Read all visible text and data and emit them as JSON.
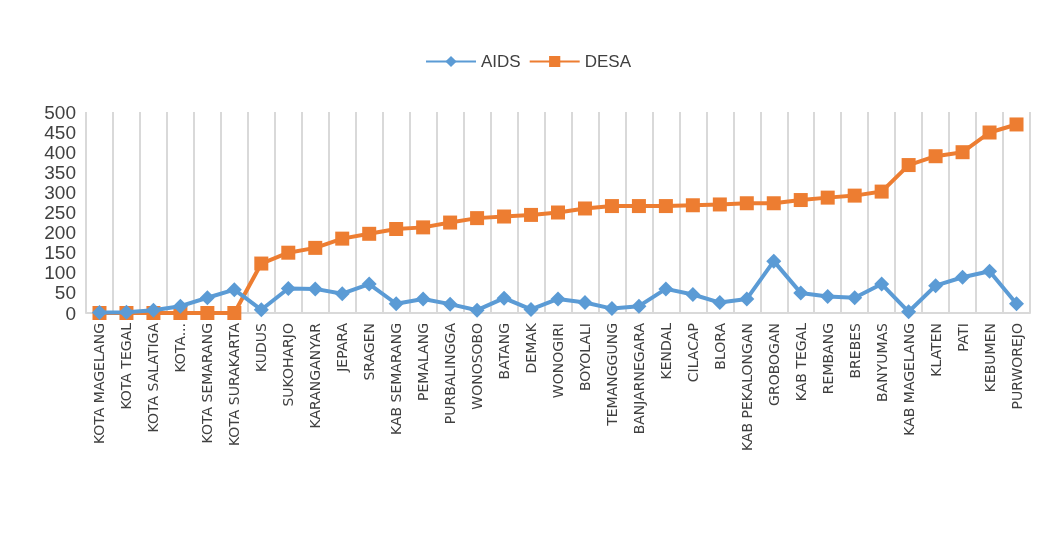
{
  "chart_data": {
    "type": "line",
    "categories": [
      "KOTA MAGELANG",
      "KOTA TEGAL",
      "KOTA SALATIGA",
      "KOTA...",
      "KOTA SEMARANG",
      "KOTA SURAKARTA",
      "KUDUS",
      "SUKOHARJO",
      "KARANGANYAR",
      "JEPARA",
      "SRAGEN",
      "KAB SEMARANG",
      "PEMALANG",
      "PURBALINGGA",
      "WONOSOBO",
      "BATANG",
      "DEMAK",
      "WONOGIRI",
      "BOYOLALI",
      "TEMANGGUNG",
      "BANJARNEGARA",
      "KENDAL",
      "CILACAP",
      "BLORA",
      "KAB PEKALONGAN",
      "GROBOGAN",
      "KAB TEGAL",
      "REMBANG",
      "BREBES",
      "BANYUMAS",
      "KAB MAGELANG",
      "KLATEN",
      "PATI",
      "KEBUMEN",
      "PURWOREJO"
    ],
    "series": [
      {
        "name": "AIDS",
        "color": "#5b9bd5",
        "marker": "diamond",
        "values": [
          1,
          2,
          7,
          17,
          38,
          58,
          8,
          61,
          60,
          48,
          72,
          23,
          35,
          22,
          7,
          37,
          9,
          35,
          26,
          11,
          17,
          60,
          46,
          26,
          35,
          129,
          50,
          41,
          38,
          72,
          3,
          68,
          89,
          104,
          23
        ]
      },
      {
        "name": "DESA",
        "color": "#ed7d31",
        "marker": "square",
        "values": [
          0,
          0,
          0,
          0,
          0,
          0,
          123,
          150,
          162,
          185,
          197,
          209,
          213,
          225,
          236,
          240,
          244,
          250,
          260,
          266,
          266,
          266,
          268,
          270,
          273,
          273,
          281,
          287,
          292,
          302,
          368,
          390,
          400,
          449,
          469
        ]
      }
    ],
    "ylim": [
      0,
      500
    ],
    "yticks": [
      0,
      50,
      100,
      150,
      200,
      250,
      300,
      350,
      400,
      450,
      500
    ],
    "grid": "x",
    "legend": "top"
  }
}
